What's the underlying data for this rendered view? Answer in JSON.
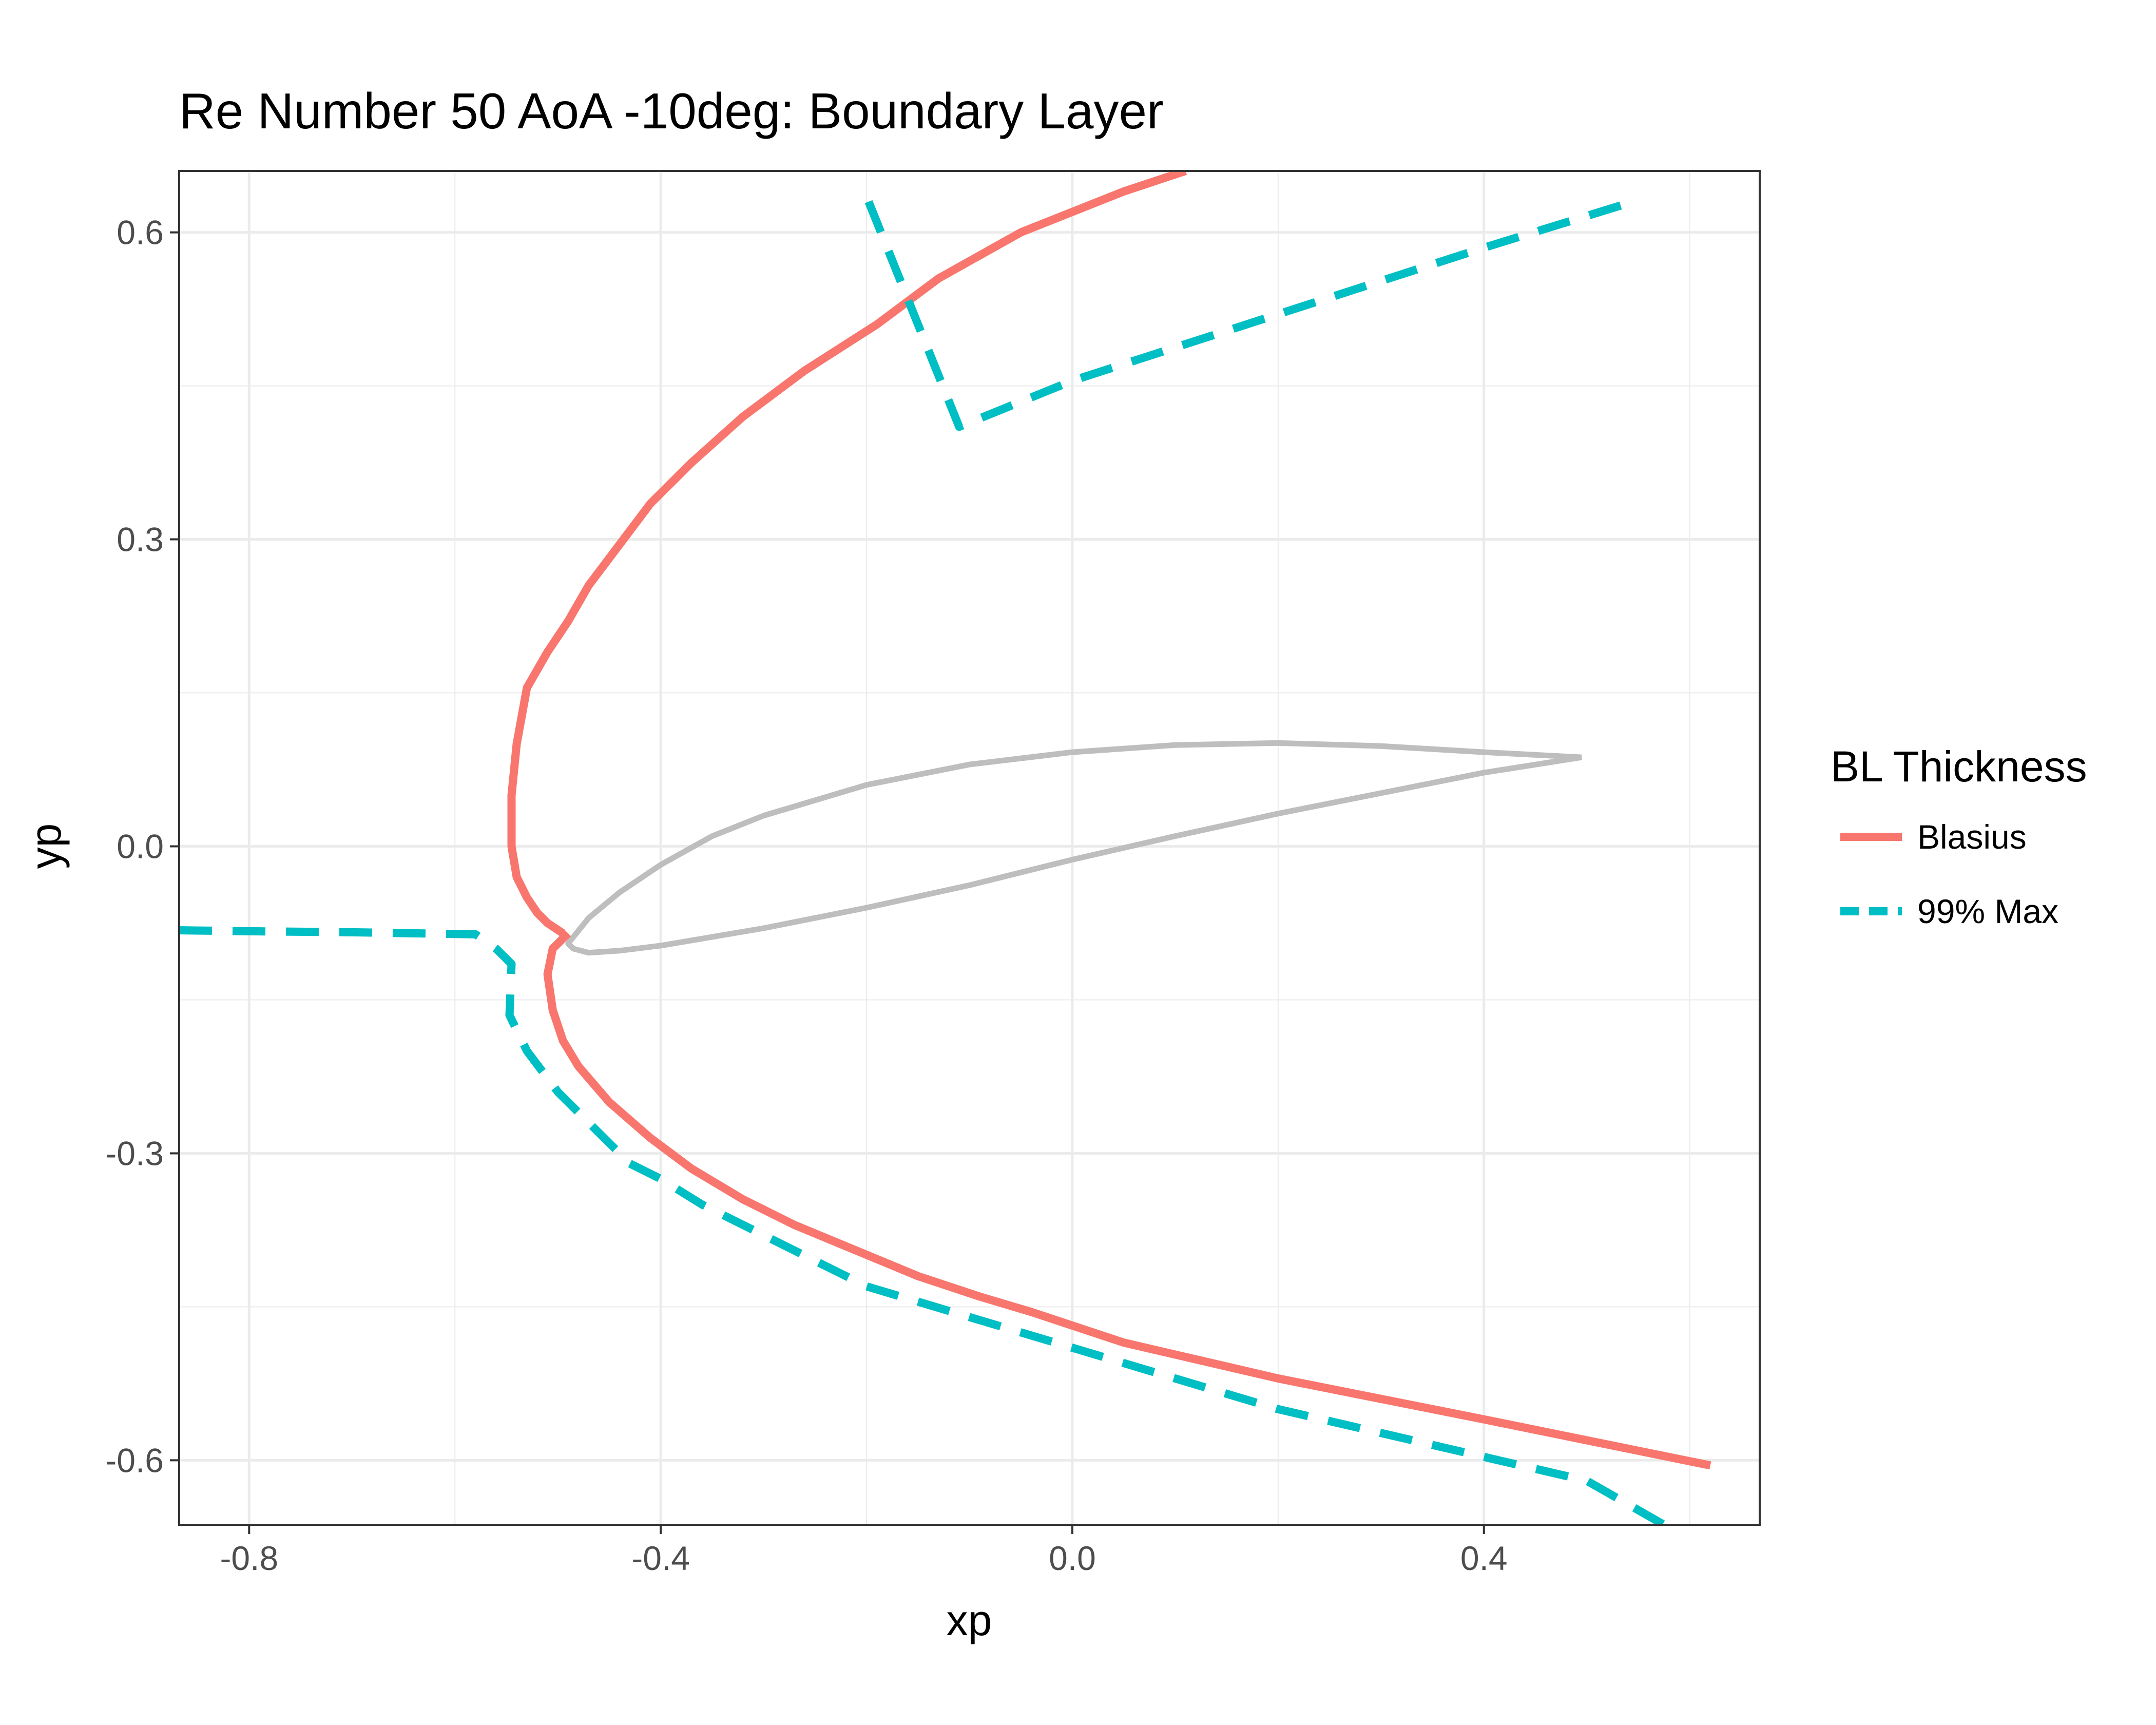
{
  "chart_data": {
    "type": "line",
    "title": "Re Number 50 AoA -10deg: Boundary Layer",
    "xlabel": "xp",
    "ylabel": "yp",
    "xlim": [
      -0.868,
      0.668
    ],
    "ylim": [
      -0.663,
      0.66
    ],
    "x_ticks": [
      -0.8,
      -0.4,
      0.0,
      0.4
    ],
    "x_tick_labels": [
      "-0.8",
      "-0.4",
      "0.0",
      "0.4"
    ],
    "y_ticks": [
      -0.6,
      -0.3,
      0.0,
      0.3,
      0.6
    ],
    "y_tick_labels": [
      "-0.6",
      "-0.3",
      "0.0",
      "0.3",
      "0.6"
    ],
    "x_minor_ticks": [
      -0.6,
      -0.2,
      0.2,
      0.6
    ],
    "y_minor_ticks": [
      -0.45,
      -0.15,
      0.15,
      0.45
    ],
    "grid": true,
    "legend": {
      "title": "BL Thickness",
      "position": "right",
      "entries": [
        {
          "label": "Blasius",
          "color": "#F8766D",
          "style": "solid"
        },
        {
          "label": "99% Max",
          "color": "#00BFC4",
          "style": "dashed"
        }
      ]
    },
    "series": [
      {
        "name": "Blasius",
        "color": "#F8766D",
        "style": "solid",
        "segments": [
          {
            "x": [
              0.11,
              0.05,
              0.0,
              -0.05,
              -0.13,
              -0.19,
              -0.26,
              -0.32,
              -0.37,
              -0.41,
              -0.44,
              -0.47,
              -0.49,
              -0.51,
              -0.53,
              -0.54,
              -0.545,
              -0.545,
              -0.54,
              -0.53,
              -0.52,
              -0.51,
              -0.495
            ],
            "y": [
              0.66,
              0.64,
              0.62,
              0.6,
              0.555,
              0.51,
              0.465,
              0.42,
              0.375,
              0.335,
              0.295,
              0.255,
              0.22,
              0.19,
              0.155,
              0.1,
              0.05,
              0.0,
              -0.03,
              -0.05,
              -0.065,
              -0.075,
              -0.085
            ]
          },
          {
            "x": [
              -0.49,
              -0.505,
              -0.51,
              -0.505,
              -0.495,
              -0.48,
              -0.45,
              -0.41,
              -0.37,
              -0.32,
              -0.27,
              -0.21,
              -0.15,
              -0.09,
              -0.04,
              0.05,
              0.2,
              0.4,
              0.62
            ],
            "y": [
              -0.085,
              -0.1,
              -0.125,
              -0.16,
              -0.19,
              -0.215,
              -0.25,
              -0.285,
              -0.315,
              -0.345,
              -0.37,
              -0.395,
              -0.42,
              -0.44,
              -0.455,
              -0.485,
              -0.52,
              -0.56,
              -0.605
            ]
          }
        ]
      },
      {
        "name": "99% Max",
        "color": "#00BFC4",
        "style": "dashed",
        "segments": [
          {
            "x": [
              -0.198,
              -0.11,
              0.0,
              0.2,
              0.4,
              0.545
            ],
            "y": [
              0.63,
              0.41,
              0.455,
              0.52,
              0.585,
              0.63
            ]
          },
          {
            "x": [
              -0.868,
              -0.8,
              -0.7,
              -0.58,
              -0.56,
              -0.545,
              -0.547,
              -0.53,
              -0.5,
              -0.47,
              -0.43,
              -0.4,
              -0.36,
              -0.3,
              -0.2,
              -0.1,
              0.0,
              0.1,
              0.2,
              0.35,
              0.5,
              0.575
            ],
            "y": [
              -0.082,
              -0.083,
              -0.084,
              -0.086,
              -0.1,
              -0.115,
              -0.165,
              -0.2,
              -0.24,
              -0.27,
              -0.31,
              -0.325,
              -0.35,
              -0.38,
              -0.43,
              -0.46,
              -0.49,
              -0.52,
              -0.55,
              -0.585,
              -0.62,
              -0.663
            ]
          }
        ]
      },
      {
        "name": "",
        "color": "#BEBEBE",
        "style": "solid",
        "closed": true,
        "segments": [
          {
            "x": [
              0.495,
              0.4,
              0.3,
              0.2,
              0.1,
              0.0,
              -0.1,
              -0.2,
              -0.3,
              -0.35,
              -0.4,
              -0.44,
              -0.47,
              -0.49,
              -0.485,
              -0.47,
              -0.44,
              -0.4,
              -0.3,
              -0.2,
              -0.1,
              0.0,
              0.1,
              0.2,
              0.3,
              0.4,
              0.495
            ],
            "y": [
              0.087,
              0.092,
              0.098,
              0.101,
              0.099,
              0.092,
              0.08,
              0.06,
              0.03,
              0.01,
              -0.018,
              -0.045,
              -0.07,
              -0.095,
              -0.1,
              -0.104,
              -0.102,
              -0.097,
              -0.08,
              -0.06,
              -0.038,
              -0.013,
              0.01,
              0.032,
              0.052,
              0.072,
              0.087
            ]
          }
        ]
      }
    ]
  }
}
